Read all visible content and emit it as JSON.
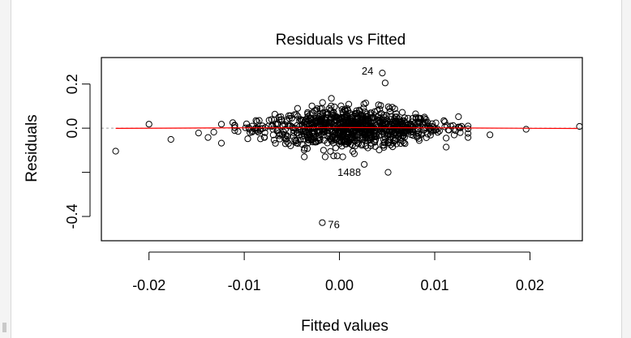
{
  "chart_data": {
    "type": "scatter",
    "title": "Residuals vs Fitted",
    "xlabel": "Fitted values",
    "ylabel": "Residuals",
    "xlim": [
      -0.025,
      0.0255
    ],
    "ylim": [
      -0.51,
      0.32
    ],
    "x_ticks": [
      -0.02,
      -0.01,
      0.0,
      0.01,
      0.02
    ],
    "x_tick_labels": [
      "-0.02",
      "-0.01",
      "0.00",
      "0.01",
      "0.02"
    ],
    "y_ticks": [
      -0.4,
      -0.2,
      0.0,
      0.2
    ],
    "y_tick_labels": [
      "-0.4",
      "",
      "0.0",
      "0.2"
    ],
    "reference_line_y": 0,
    "smoother": {
      "color": "#ff0000",
      "x": [
        -0.0235,
        -0.016,
        -0.01,
        -0.005,
        0.0,
        0.005,
        0.01,
        0.015,
        0.02,
        0.025
      ],
      "y": [
        -0.001,
        0.0005,
        0.0015,
        0.002,
        0.003,
        0.0025,
        0.0015,
        0.0005,
        -0.0005,
        -0.0015
      ]
    },
    "labeled_points": [
      {
        "label": "24",
        "x": 0.0045,
        "y": 0.25
      },
      {
        "label": "1488",
        "x": 0.0026,
        "y": -0.164
      },
      {
        "label": "76",
        "x": -0.0018,
        "y": -0.428
      }
    ],
    "outer_points": [
      {
        "x": -0.0235,
        "y": -0.104
      },
      {
        "x": -0.02,
        "y": 0.018
      },
      {
        "x": -0.0177,
        "y": -0.051
      },
      {
        "x": -0.0148,
        "y": -0.022
      },
      {
        "x": -0.0138,
        "y": -0.042
      },
      {
        "x": -0.0132,
        "y": -0.018
      },
      {
        "x": -0.0124,
        "y": -0.068
      },
      {
        "x": -0.0124,
        "y": 0.018
      },
      {
        "x": -0.0112,
        "y": 0.025
      },
      {
        "x": 0.0048,
        "y": 0.205
      },
      {
        "x": 0.0051,
        "y": -0.2
      },
      {
        "x": 0.0112,
        "y": -0.086
      },
      {
        "x": 0.0112,
        "y": -0.045
      },
      {
        "x": 0.0125,
        "y": 0.052
      },
      {
        "x": 0.0135,
        "y": -0.042
      },
      {
        "x": 0.0158,
        "y": -0.03
      },
      {
        "x": 0.0196,
        "y": -0.005
      },
      {
        "x": 0.0252,
        "y": 0.008
      }
    ],
    "cluster": {
      "point_count": 900,
      "x_range": [
        -0.011,
        0.0135
      ],
      "y_range": [
        -0.13,
        0.135
      ]
    },
    "grid": false,
    "point_style": "open-circle",
    "point_color": "#000000"
  }
}
